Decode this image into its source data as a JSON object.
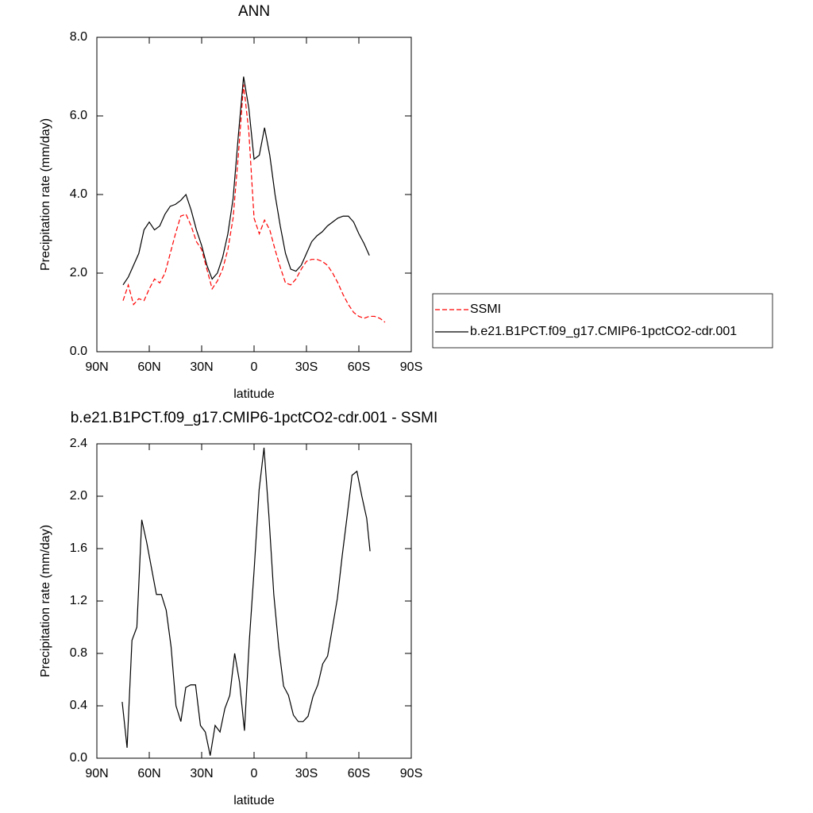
{
  "chart_data": [
    {
      "type": "line",
      "title": "ANN",
      "x_label": "latitude",
      "y_label": "Precipitation rate (mm/day)",
      "x": [
        75,
        72,
        69,
        66,
        63,
        60,
        57,
        54,
        51,
        48,
        45,
        42,
        39,
        36,
        33,
        30,
        27,
        24,
        21,
        18,
        15,
        12,
        9,
        6,
        3,
        0,
        -3,
        -6,
        -9,
        -12,
        -15,
        -18,
        -21,
        -24,
        -27,
        -30,
        -33,
        -36,
        -39,
        -42,
        -45,
        -48,
        -51,
        -54,
        -57,
        -60,
        -63,
        -66,
        -69,
        -72,
        -75
      ],
      "xlim": [
        90,
        -90
      ],
      "xticks": [
        {
          "value": 90,
          "label": "90N"
        },
        {
          "value": 60,
          "label": "60N"
        },
        {
          "value": 30,
          "label": "30N"
        },
        0,
        {
          "value": -30,
          "label": "30S"
        },
        {
          "value": -60,
          "label": "60S"
        },
        {
          "value": -90,
          "label": "90S"
        }
      ],
      "ylim": [
        0,
        8
      ],
      "yticks": [
        {
          "value": 0,
          "label": "0.0"
        },
        {
          "value": 2,
          "label": "2.0"
        },
        {
          "value": 4,
          "label": "4.0"
        },
        {
          "value": 6,
          "label": "6.0"
        },
        {
          "value": 8,
          "label": "8.0"
        }
      ],
      "legend": "right",
      "series": [
        {
          "name": "SSMI",
          "color": "#ff0000",
          "dash": "dashed",
          "values": [
            1.3,
            1.7,
            1.2,
            1.35,
            1.3,
            1.6,
            1.85,
            1.75,
            2.0,
            2.5,
            3.0,
            3.45,
            3.5,
            3.2,
            2.8,
            2.6,
            2.1,
            1.6,
            1.8,
            2.1,
            2.6,
            3.4,
            5.0,
            6.8,
            5.6,
            3.4,
            3.0,
            3.35,
            3.1,
            2.6,
            2.15,
            1.75,
            1.7,
            1.85,
            2.1,
            2.3,
            2.35,
            2.35,
            2.3,
            2.2,
            2.0,
            1.75,
            1.45,
            1.2,
            1.0,
            0.9,
            0.85,
            0.9,
            0.9,
            0.85,
            0.75
          ]
        },
        {
          "name": "b.e21.B1PCT.f09_g17.CMIP6-1pctCO2-cdr.001",
          "color": "#000000",
          "dash": "solid",
          "values": [
            1.7,
            1.9,
            2.2,
            2.5,
            3.1,
            3.3,
            3.1,
            3.2,
            3.5,
            3.7,
            3.75,
            3.85,
            4.0,
            3.6,
            3.1,
            2.7,
            2.2,
            1.85,
            2.0,
            2.4,
            3.0,
            3.9,
            5.5,
            7.0,
            6.2,
            4.9,
            5.0,
            5.7,
            5.0,
            4.0,
            3.2,
            2.5,
            2.1,
            2.05,
            2.2,
            2.5,
            2.8,
            2.95,
            3.05,
            3.2,
            3.3,
            3.4,
            3.45,
            3.45,
            3.3,
            3.0,
            2.75,
            2.45,
            null,
            null,
            null
          ]
        }
      ]
    },
    {
      "type": "line",
      "title": "b.e21.B1PCT.f09_g17.CMIP6-1pctCO2-cdr.001 - SSMI",
      "x_label": "latitude",
      "y_label": "Precipitation rate (mm/day)",
      "x": [
        75.5,
        72.7,
        69.9,
        67.1,
        64.3,
        61.5,
        58.7,
        55.9,
        53.1,
        50.3,
        47.5,
        44.7,
        41.9,
        39.1,
        36.3,
        33.5,
        30.7,
        27.9,
        25.1,
        22.3,
        19.5,
        16.7,
        13.9,
        11.1,
        8.3,
        5.5,
        2.7,
        -0.1,
        -2.9,
        -5.7,
        -8.5,
        -11.3,
        -14.1,
        -16.9,
        -19.7,
        -22.5,
        -25.3,
        -28.1,
        -30.9,
        -33.7,
        -36.5,
        -39.3,
        -42.1,
        -44.9,
        -47.7,
        -50.5,
        -53.3,
        -56.1,
        -58.9,
        -61.7,
        -64.5,
        -66.4
      ],
      "xlim": [
        90,
        -90
      ],
      "xticks": [
        {
          "value": 90,
          "label": "90N"
        },
        {
          "value": 60,
          "label": "60N"
        },
        {
          "value": 30,
          "label": "30N"
        },
        0,
        {
          "value": -30,
          "label": "30S"
        },
        {
          "value": -60,
          "label": "60S"
        },
        {
          "value": -90,
          "label": "90S"
        }
      ],
      "ylim": [
        0,
        2.4
      ],
      "yticks": [
        {
          "value": 0,
          "label": "0.0"
        },
        {
          "value": 0.4,
          "label": "0.4"
        },
        {
          "value": 0.8,
          "label": "0.8"
        },
        {
          "value": 1.2,
          "label": "1.2"
        },
        {
          "value": 1.6,
          "label": "1.6"
        },
        {
          "value": 2.0,
          "label": "2.0"
        },
        {
          "value": 2.4,
          "label": "2.4"
        }
      ],
      "series": [
        {
          "color": "#000000",
          "dash": "solid",
          "values": [
            0.43,
            0.08,
            0.9,
            1.0,
            1.82,
            1.65,
            1.45,
            1.25,
            1.25,
            1.13,
            0.85,
            0.4,
            0.28,
            0.54,
            0.56,
            0.56,
            0.25,
            0.2,
            0.02,
            0.25,
            0.2,
            0.38,
            0.48,
            0.8,
            0.58,
            0.21,
            0.9,
            1.45,
            2.05,
            2.37,
            1.85,
            1.25,
            0.85,
            0.55,
            0.48,
            0.33,
            0.28,
            0.28,
            0.32,
            0.47,
            0.56,
            0.72,
            0.78,
            1.0,
            1.22,
            1.55,
            1.85,
            2.16,
            2.19,
            2.0,
            1.83,
            1.58
          ]
        }
      ]
    }
  ]
}
